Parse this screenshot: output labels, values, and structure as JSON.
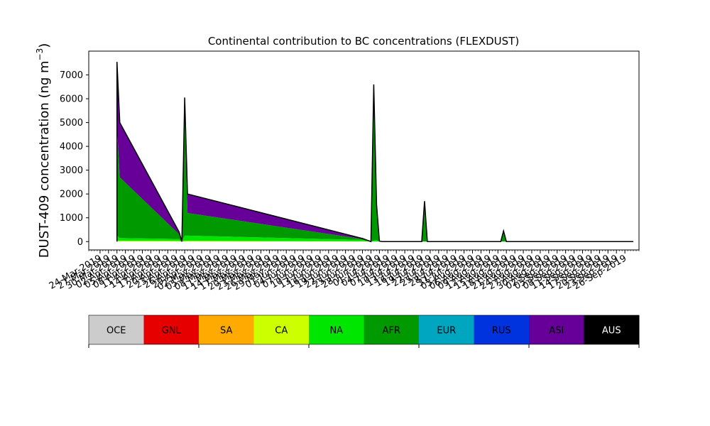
{
  "chart_data": {
    "type": "area",
    "stacked": true,
    "title": "Continental contribution to BC concentrations (FLEXDUST)",
    "ylabel": "DUST-409 concentration (ng m",
    "ylabel_superscript": "−3",
    "ylabel_close": ")",
    "ylim": [
      -350,
      8000
    ],
    "yticks": [
      0,
      1000,
      2000,
      3000,
      4000,
      5000,
      6000,
      7000
    ],
    "xlim": [
      "2019-03-20",
      "2019-10-01"
    ],
    "x_tick_labels": [
      "24-Mar-2019",
      "27-Mar-2019",
      "30-Mar-2019",
      "02-Apr-2019",
      "05-Apr-2019",
      "08-Apr-2019",
      "11-Apr-2019",
      "14-Apr-2019",
      "17-Apr-2019",
      "20-Apr-2019",
      "23-Apr-2019",
      "26-Apr-2019",
      "29-Apr-2019",
      "02-May-2019",
      "05-May-2019",
      "08-May-2019",
      "11-May-2019",
      "14-May-2019",
      "17-May-2019",
      "20-May-2019",
      "23-May-2019",
      "26-May-2019",
      "29-May-2019",
      "01-Jun-2019",
      "04-Jun-2019",
      "07-Jun-2019",
      "10-Jun-2019",
      "13-Jun-2019",
      "16-Jun-2019",
      "19-Jun-2019",
      "22-Jun-2019",
      "25-Jun-2019",
      "28-Jun-2019",
      "01-Jul-2019",
      "04-Jul-2019",
      "07-Jul-2019",
      "10-Jul-2019",
      "13-Jul-2019",
      "16-Jul-2019",
      "19-Jul-2019",
      "22-Jul-2019",
      "25-Jul-2019",
      "28-Jul-2019",
      "31-Jul-2019",
      "03-Aug-2019",
      "06-Aug-2019",
      "09-Aug-2019",
      "12-Aug-2019",
      "15-Aug-2019",
      "18-Aug-2019",
      "21-Aug-2019",
      "24-Aug-2019",
      "27-Aug-2019",
      "30-Aug-2019",
      "02-Sep-2019",
      "05-Sep-2019",
      "08-Sep-2019",
      "11-Sep-2019",
      "14-Sep-2019",
      "17-Sep-2019",
      "20-Sep-2019",
      "23-Sep-2019",
      "26-Sep-2019"
    ],
    "x": [
      "2019-03-30",
      "2019-03-30",
      "2019-03-31",
      "2019-04-21",
      "2019-04-22",
      "2019-04-23",
      "2019-04-24",
      "2019-06-25",
      "2019-06-28",
      "2019-06-29",
      "2019-06-30",
      "2019-07-01",
      "2019-07-02",
      "2019-07-16",
      "2019-07-17",
      "2019-07-18",
      "2019-07-19",
      "2019-08-13",
      "2019-08-14",
      "2019-08-15",
      "2019-09-29"
    ],
    "series": [
      {
        "name": "OCE",
        "color": "#cccccc",
        "values": [
          0,
          0,
          0,
          0,
          0,
          0,
          0,
          0,
          0,
          0,
          0,
          0,
          0,
          0,
          0,
          0,
          0,
          0,
          0,
          0,
          0
        ]
      },
      {
        "name": "GNL",
        "color": "#e60000",
        "values": [
          0,
          0,
          0,
          0,
          0,
          0,
          0,
          0,
          0,
          0,
          0,
          0,
          0,
          0,
          0,
          0,
          0,
          0,
          0,
          0,
          0
        ]
      },
      {
        "name": "SA",
        "color": "#ffaa00",
        "values": [
          0,
          0,
          0,
          0,
          0,
          0,
          0,
          0,
          0,
          0,
          0,
          0,
          0,
          0,
          0,
          0,
          0,
          0,
          0,
          0,
          0
        ]
      },
      {
        "name": "CA",
        "color": "#ccff00",
        "values": [
          0,
          30,
          30,
          30,
          0,
          30,
          30,
          10,
          0,
          0,
          0,
          0,
          0,
          0,
          0,
          0,
          0,
          0,
          0,
          0,
          0
        ]
      },
      {
        "name": "NA",
        "color": "#00e600",
        "values": [
          0,
          220,
          120,
          80,
          0,
          220,
          220,
          60,
          0,
          50,
          60,
          20,
          0,
          0,
          0,
          0,
          0,
          0,
          0,
          0,
          0
        ]
      },
      {
        "name": "AFR",
        "color": "#009900",
        "values": [
          0,
          4500,
          2550,
          200,
          0,
          5000,
          950,
          40,
          0,
          5600,
          1500,
          0,
          0,
          0,
          1600,
          0,
          0,
          0,
          450,
          0,
          0
        ]
      },
      {
        "name": "EUR",
        "color": "#00a6bf",
        "values": [
          0,
          0,
          0,
          0,
          0,
          0,
          0,
          0,
          0,
          0,
          0,
          0,
          0,
          0,
          0,
          0,
          0,
          0,
          0,
          0,
          0
        ]
      },
      {
        "name": "RUS",
        "color": "#0033dd",
        "values": [
          0,
          100,
          0,
          0,
          0,
          100,
          0,
          0,
          0,
          0,
          0,
          0,
          0,
          0,
          0,
          0,
          0,
          0,
          0,
          0,
          0
        ]
      },
      {
        "name": "ASI",
        "color": "#660099",
        "values": [
          0,
          2700,
          2300,
          100,
          0,
          700,
          800,
          20,
          0,
          950,
          0,
          0,
          0,
          0,
          100,
          0,
          0,
          0,
          0,
          0,
          0
        ]
      },
      {
        "name": "AUS",
        "color": "#000000",
        "values": [
          0,
          0,
          0,
          0,
          0,
          0,
          0,
          0,
          0,
          0,
          0,
          0,
          0,
          0,
          0,
          0,
          0,
          0,
          0,
          0,
          0
        ]
      }
    ],
    "legend": {
      "placement": "bottom",
      "entries": [
        "OCE",
        "GNL",
        "SA",
        "CA",
        "NA",
        "AFR",
        "EUR",
        "RUS",
        "ASI",
        "AUS"
      ],
      "text_colors": [
        "#000000",
        "#000000",
        "#000000",
        "#000000",
        "#000000",
        "#000000",
        "#000000",
        "#000000",
        "#000000",
        "#ffffff"
      ]
    }
  }
}
